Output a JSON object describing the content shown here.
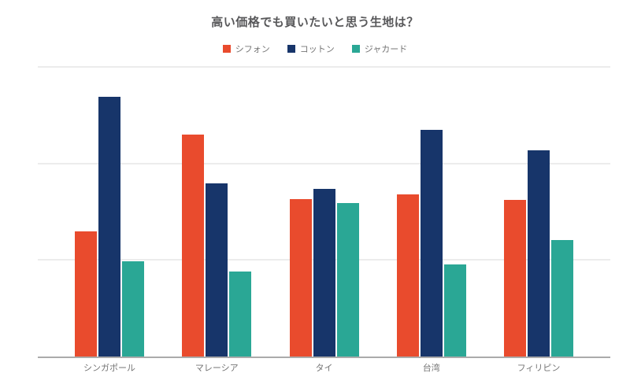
{
  "title": "高い価格でも買いたいと思う生地は？",
  "colors": {
    "chiffon": "#e94b2d",
    "cotton": "#17356a",
    "jacquard": "#2aa795",
    "gridline": "#ececec",
    "baseline": "#ababab",
    "axis_label_text": "#757575",
    "title_text": "#58585a",
    "background": "#ffffff"
  },
  "chart_data": {
    "type": "bar",
    "title": "高い価格でも買いたいと思う生地は？",
    "categories": [
      "シンガポール",
      "マレーシア",
      "タイ",
      "台湾",
      "フィリピン"
    ],
    "series": [
      {
        "name": "シフォン",
        "slug": "chiffon",
        "color": "#e94b2d",
        "values": [
          1.3,
          2.3,
          1.63,
          1.68,
          1.62
        ]
      },
      {
        "name": "コットン",
        "slug": "cotton",
        "color": "#17356a",
        "values": [
          2.69,
          1.79,
          1.74,
          2.35,
          2.14
        ]
      },
      {
        "name": "ジャカード",
        "slug": "jacquard",
        "color": "#2aa795",
        "values": [
          0.99,
          0.88,
          1.59,
          0.95,
          1.21
        ]
      }
    ],
    "xlabel": "",
    "ylabel": "",
    "ylim": [
      0,
      3
    ],
    "gridlines": [
      1,
      2,
      3
    ],
    "y_tick_labels_visible": false,
    "grid": true,
    "legend_position": "top"
  }
}
